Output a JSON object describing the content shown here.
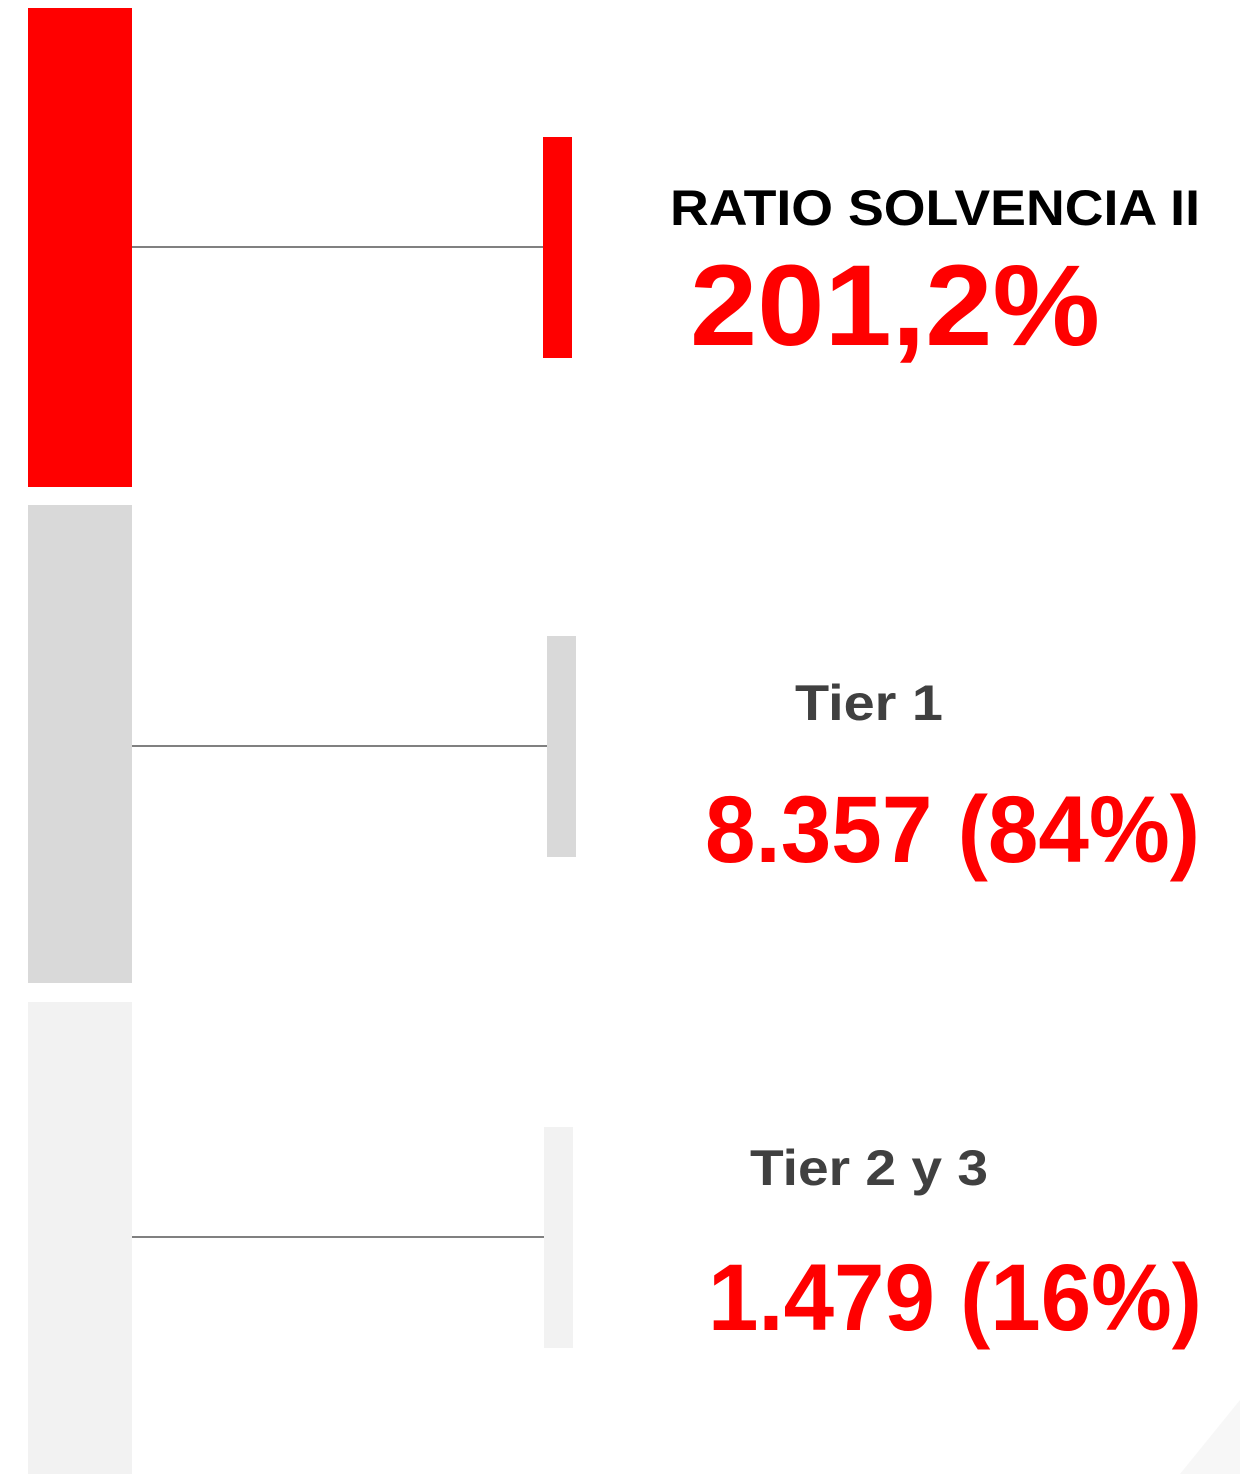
{
  "ratio": {
    "label": "RATIO SOLVENCIA II",
    "value": "201,2%"
  },
  "tiers": [
    {
      "label": "Tier 1",
      "value": "8.357 (84%)"
    },
    {
      "label": "Tier 2 y 3",
      "value": "1.479 (16%)"
    }
  ]
}
